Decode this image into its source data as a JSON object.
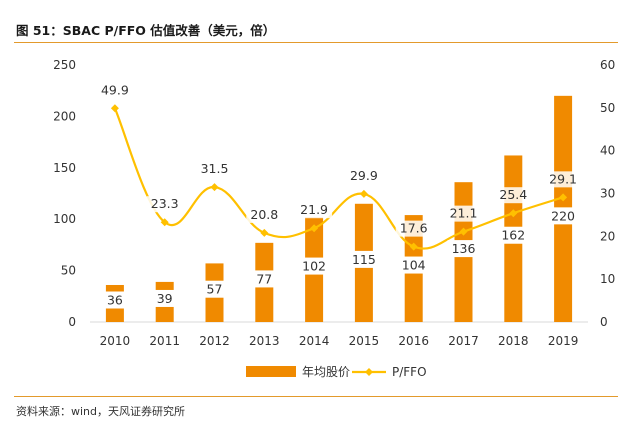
{
  "title": "图 51：SBAC P/FFO 估值改善（美元，倍）",
  "source": "资料来源：wind，天风证券研究所",
  "chart_data": {
    "type": "bar+line",
    "categories": [
      "2010",
      "2011",
      "2012",
      "2013",
      "2014",
      "2015",
      "2016",
      "2017",
      "2018",
      "2019"
    ],
    "series": [
      {
        "name": "年均股价",
        "type": "bar",
        "axis": "left",
        "color": "#f08a00",
        "values": [
          36,
          39,
          57,
          77,
          102,
          115,
          104,
          136,
          162,
          220
        ]
      },
      {
        "name": "P/FFO",
        "type": "line",
        "axis": "right",
        "color": "#ffc000",
        "values": [
          49.9,
          23.3,
          31.5,
          20.8,
          21.9,
          29.9,
          17.6,
          21.1,
          25.4,
          29.1
        ]
      }
    ],
    "y_left": {
      "min": 0,
      "max": 250,
      "ticks": [
        0,
        50,
        100,
        150,
        200,
        250
      ]
    },
    "y_right": {
      "min": 0,
      "max": 60,
      "ticks": [
        0,
        10,
        20,
        30,
        40,
        50,
        60
      ]
    },
    "legend_position": "bottom",
    "grid": false
  }
}
